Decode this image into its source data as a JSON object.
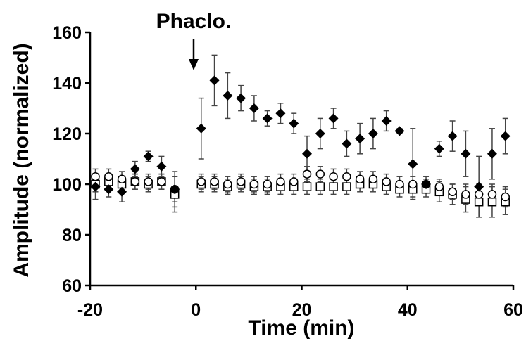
{
  "chart_data": {
    "type": "scatter",
    "title": "",
    "xlabel": "Time (min)",
    "ylabel": "Amplitude (normalized)",
    "xlim": [
      -20,
      60
    ],
    "ylim": [
      60,
      160
    ],
    "xticks": [
      "-20",
      "0",
      "20",
      "40",
      "60"
    ],
    "yticks": [
      "60",
      "80",
      "100",
      "120",
      "140",
      "160"
    ],
    "grid": false,
    "annotation": {
      "text": "Phaclo.",
      "x": 0
    },
    "series": [
      {
        "marker": "filled-diamond",
        "color": "#000000",
        "x": [
          -19,
          -16.5,
          -14,
          -11.5,
          -9,
          -6.5,
          -4,
          1,
          3.5,
          6,
          8.5,
          11,
          13.5,
          16,
          18.5,
          21,
          23.5,
          26,
          28.5,
          31,
          33.5,
          36,
          38.5,
          41,
          43.5,
          46,
          48.5,
          51,
          53.5,
          56,
          58.5
        ],
        "y": [
          99,
          98,
          97,
          106,
          111,
          107,
          98,
          122,
          141,
          135,
          134,
          130,
          126,
          128,
          124,
          112,
          120,
          126,
          116,
          118,
          120,
          125,
          121,
          108,
          100,
          114,
          119,
          112,
          99,
          112,
          119
        ],
        "err": [
          5,
          3,
          4,
          3,
          2,
          4,
          7,
          12,
          10,
          9,
          5,
          5,
          3,
          4,
          4,
          7,
          6,
          4,
          5,
          6,
          6,
          4,
          1,
          14,
          2,
          3,
          6,
          9,
          12,
          10,
          7
        ]
      },
      {
        "marker": "open-circle",
        "color": "#000000",
        "x": [
          -19,
          -16.5,
          -14,
          -11.5,
          -9,
          -6.5,
          -4,
          1,
          3.5,
          6,
          8.5,
          11,
          13.5,
          16,
          18.5,
          21,
          23.5,
          26,
          28.5,
          31,
          33.5,
          36,
          38.5,
          41,
          43.5,
          46,
          48.5,
          51,
          53.5,
          56,
          58.5
        ],
        "y": [
          103,
          103,
          102,
          101,
          101,
          101,
          98,
          101,
          101,
          100,
          101,
          100,
          100,
          101,
          101,
          104,
          104,
          103,
          103,
          102,
          102,
          101,
          100,
          100,
          100,
          99,
          97,
          96,
          96,
          96,
          95
        ],
        "err": [
          3,
          3,
          3,
          3,
          3,
          3,
          5,
          3,
          3,
          3,
          3,
          3,
          3,
          3,
          3,
          3,
          3,
          3,
          3,
          3,
          3,
          3,
          3,
          3,
          3,
          3,
          3,
          4,
          4,
          4,
          4
        ]
      },
      {
        "marker": "open-square",
        "color": "#000000",
        "x": [
          -19,
          -16.5,
          -14,
          -11.5,
          -9,
          -6.5,
          -4,
          1,
          3.5,
          6,
          8.5,
          11,
          13.5,
          16,
          18.5,
          21,
          23.5,
          26,
          28.5,
          31,
          33.5,
          36,
          38.5,
          41,
          43.5,
          46,
          48.5,
          51,
          53.5,
          56,
          58.5
        ],
        "y": [
          100,
          101,
          100,
          101,
          100,
          101,
          96,
          100,
          100,
          99,
          100,
          99,
          99,
          99,
          99,
          99,
          99,
          99,
          99,
          100,
          100,
          99,
          98,
          98,
          98,
          97,
          96,
          94,
          93,
          93,
          93
        ],
        "err": [
          3,
          3,
          3,
          3,
          3,
          3,
          7,
          3,
          3,
          3,
          3,
          3,
          3,
          3,
          3,
          3,
          3,
          3,
          3,
          3,
          3,
          3,
          3,
          3,
          3,
          4,
          4,
          5,
          6,
          6,
          5
        ]
      }
    ]
  }
}
